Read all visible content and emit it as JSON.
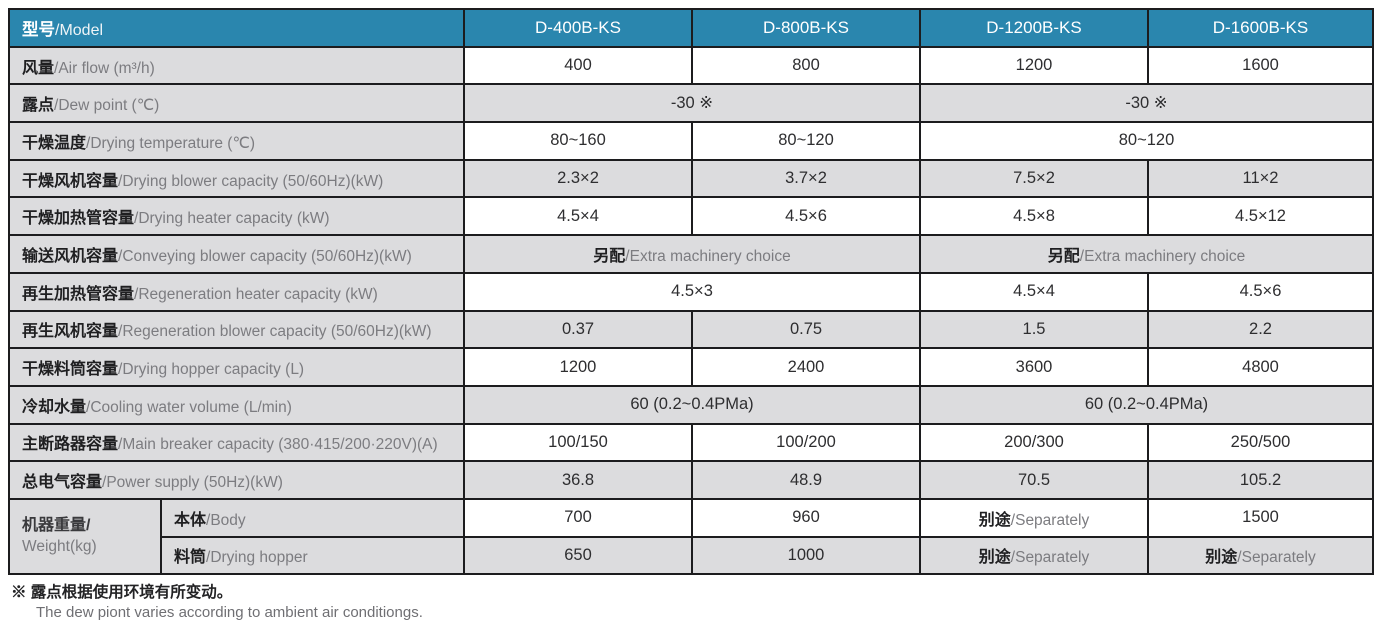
{
  "table": {
    "header": {
      "label_zh": "型号",
      "label_en": "/Model",
      "models": [
        "D-400B-KS",
        "D-800B-KS",
        "D-1200B-KS",
        "D-1600B-KS"
      ]
    },
    "rows": [
      {
        "id": "air-flow",
        "label_zh": "风量",
        "label_en": "/Air flow (m³/h)",
        "shade": false,
        "cells": [
          {
            "value": "400"
          },
          {
            "value": "800"
          },
          {
            "value": "1200"
          },
          {
            "value": "1600"
          }
        ]
      },
      {
        "id": "dew-point",
        "label_zh": "露点",
        "label_en": "/Dew point (℃)",
        "shade": true,
        "cells": [
          {
            "value": "-30 ※",
            "span": 2
          },
          {
            "value": "-30 ※",
            "span": 2
          }
        ]
      },
      {
        "id": "drying-temperature",
        "label_zh": "干燥温度",
        "label_en": "/Drying temperature (℃)",
        "shade": false,
        "cells": [
          {
            "value": "80~160"
          },
          {
            "value": "80~120"
          },
          {
            "value": "80~120",
            "span": 2
          }
        ]
      },
      {
        "id": "drying-blower-capacity",
        "label_zh": "干燥风机容量",
        "label_en": "/Drying blower capacity (50/60Hz)(kW)",
        "shade": true,
        "cells": [
          {
            "value": "2.3×2"
          },
          {
            "value": "3.7×2"
          },
          {
            "value": "7.5×2"
          },
          {
            "value": "11×2"
          }
        ]
      },
      {
        "id": "drying-heater-capacity",
        "label_zh": "干燥加热管容量",
        "label_en": "/Drying heater capacity (kW)",
        "shade": false,
        "cells": [
          {
            "value": "4.5×4"
          },
          {
            "value": "4.5×6"
          },
          {
            "value": "4.5×8"
          },
          {
            "value": "4.5×12"
          }
        ]
      },
      {
        "id": "conveying-blower-capacity",
        "label_zh": "输送风机容量",
        "label_en": "/Conveying blower capacity (50/60Hz)(kW)",
        "shade": true,
        "cells": [
          {
            "zh": "另配",
            "en": "/Extra machinery choice",
            "span": 2
          },
          {
            "zh": "另配",
            "en": "/Extra machinery choice",
            "span": 2
          }
        ]
      },
      {
        "id": "regeneration-heater-capacity",
        "label_zh": "再生加热管容量",
        "label_en": "/Regeneration heater capacity (kW)",
        "shade": false,
        "cells": [
          {
            "value": "4.5×3",
            "span": 2
          },
          {
            "value": "4.5×4"
          },
          {
            "value": "4.5×6"
          }
        ]
      },
      {
        "id": "regeneration-blower-capacity",
        "label_zh": "再生风机容量",
        "label_en": "/Regeneration blower capacity (50/60Hz)(kW)",
        "shade": true,
        "cells": [
          {
            "value": "0.37"
          },
          {
            "value": "0.75"
          },
          {
            "value": "1.5"
          },
          {
            "value": "2.2"
          }
        ]
      },
      {
        "id": "drying-hopper-capacity",
        "label_zh": "干燥料筒容量",
        "label_en": "/Drying hopper capacity (L)",
        "shade": false,
        "cells": [
          {
            "value": "1200"
          },
          {
            "value": "2400"
          },
          {
            "value": "3600"
          },
          {
            "value": "4800"
          }
        ]
      },
      {
        "id": "cooling-water-volume",
        "label_zh": "冷却水量",
        "label_en": "/Cooling water volume (L/min)",
        "shade": true,
        "cells": [
          {
            "value": "60 (0.2~0.4PMa)",
            "span": 2
          },
          {
            "value": "60 (0.2~0.4PMa)",
            "span": 2
          }
        ]
      },
      {
        "id": "main-breaker-capacity",
        "label_zh": "主断路器容量",
        "label_en": "/Main breaker capacity (380·415/200·220V)(A)",
        "shade": false,
        "cells": [
          {
            "value": "100/150"
          },
          {
            "value": "100/200"
          },
          {
            "value": "200/300"
          },
          {
            "value": "250/500"
          }
        ]
      },
      {
        "id": "power-supply",
        "label_zh": "总电气容量",
        "label_en": "/Power supply (50Hz)(kW)",
        "shade": true,
        "cells": [
          {
            "value": "36.8"
          },
          {
            "value": "48.9"
          },
          {
            "value": "70.5"
          },
          {
            "value": "105.2"
          }
        ]
      }
    ],
    "weight": {
      "label_zh": "机器重量/",
      "label_en": "Weight(kg)",
      "rows": [
        {
          "id": "weight-body",
          "sub_zh": "本体",
          "sub_en": "/Body",
          "shade": false,
          "cells": [
            {
              "value": "700"
            },
            {
              "value": "960"
            },
            {
              "zh": "别途",
              "en": "/Separately"
            },
            {
              "value": "1500"
            }
          ]
        },
        {
          "id": "weight-hopper",
          "sub_zh": "料筒",
          "sub_en": "/Drying hopper",
          "shade": true,
          "cells": [
            {
              "value": "650"
            },
            {
              "value": "1000"
            },
            {
              "zh": "别途",
              "en": "/Separately"
            },
            {
              "zh": "别途",
              "en": "/Separately"
            }
          ]
        }
      ]
    }
  },
  "notes": {
    "zh": "※ 露点根据使用环境有所变动。",
    "en": "The dew piont varies according to ambient air conditiongs."
  },
  "colors": {
    "header_blue": "#2a86ae",
    "cell_gray": "#dcdcde",
    "border": "#1c1c1e",
    "label_en_gray": "#7c7c80"
  }
}
